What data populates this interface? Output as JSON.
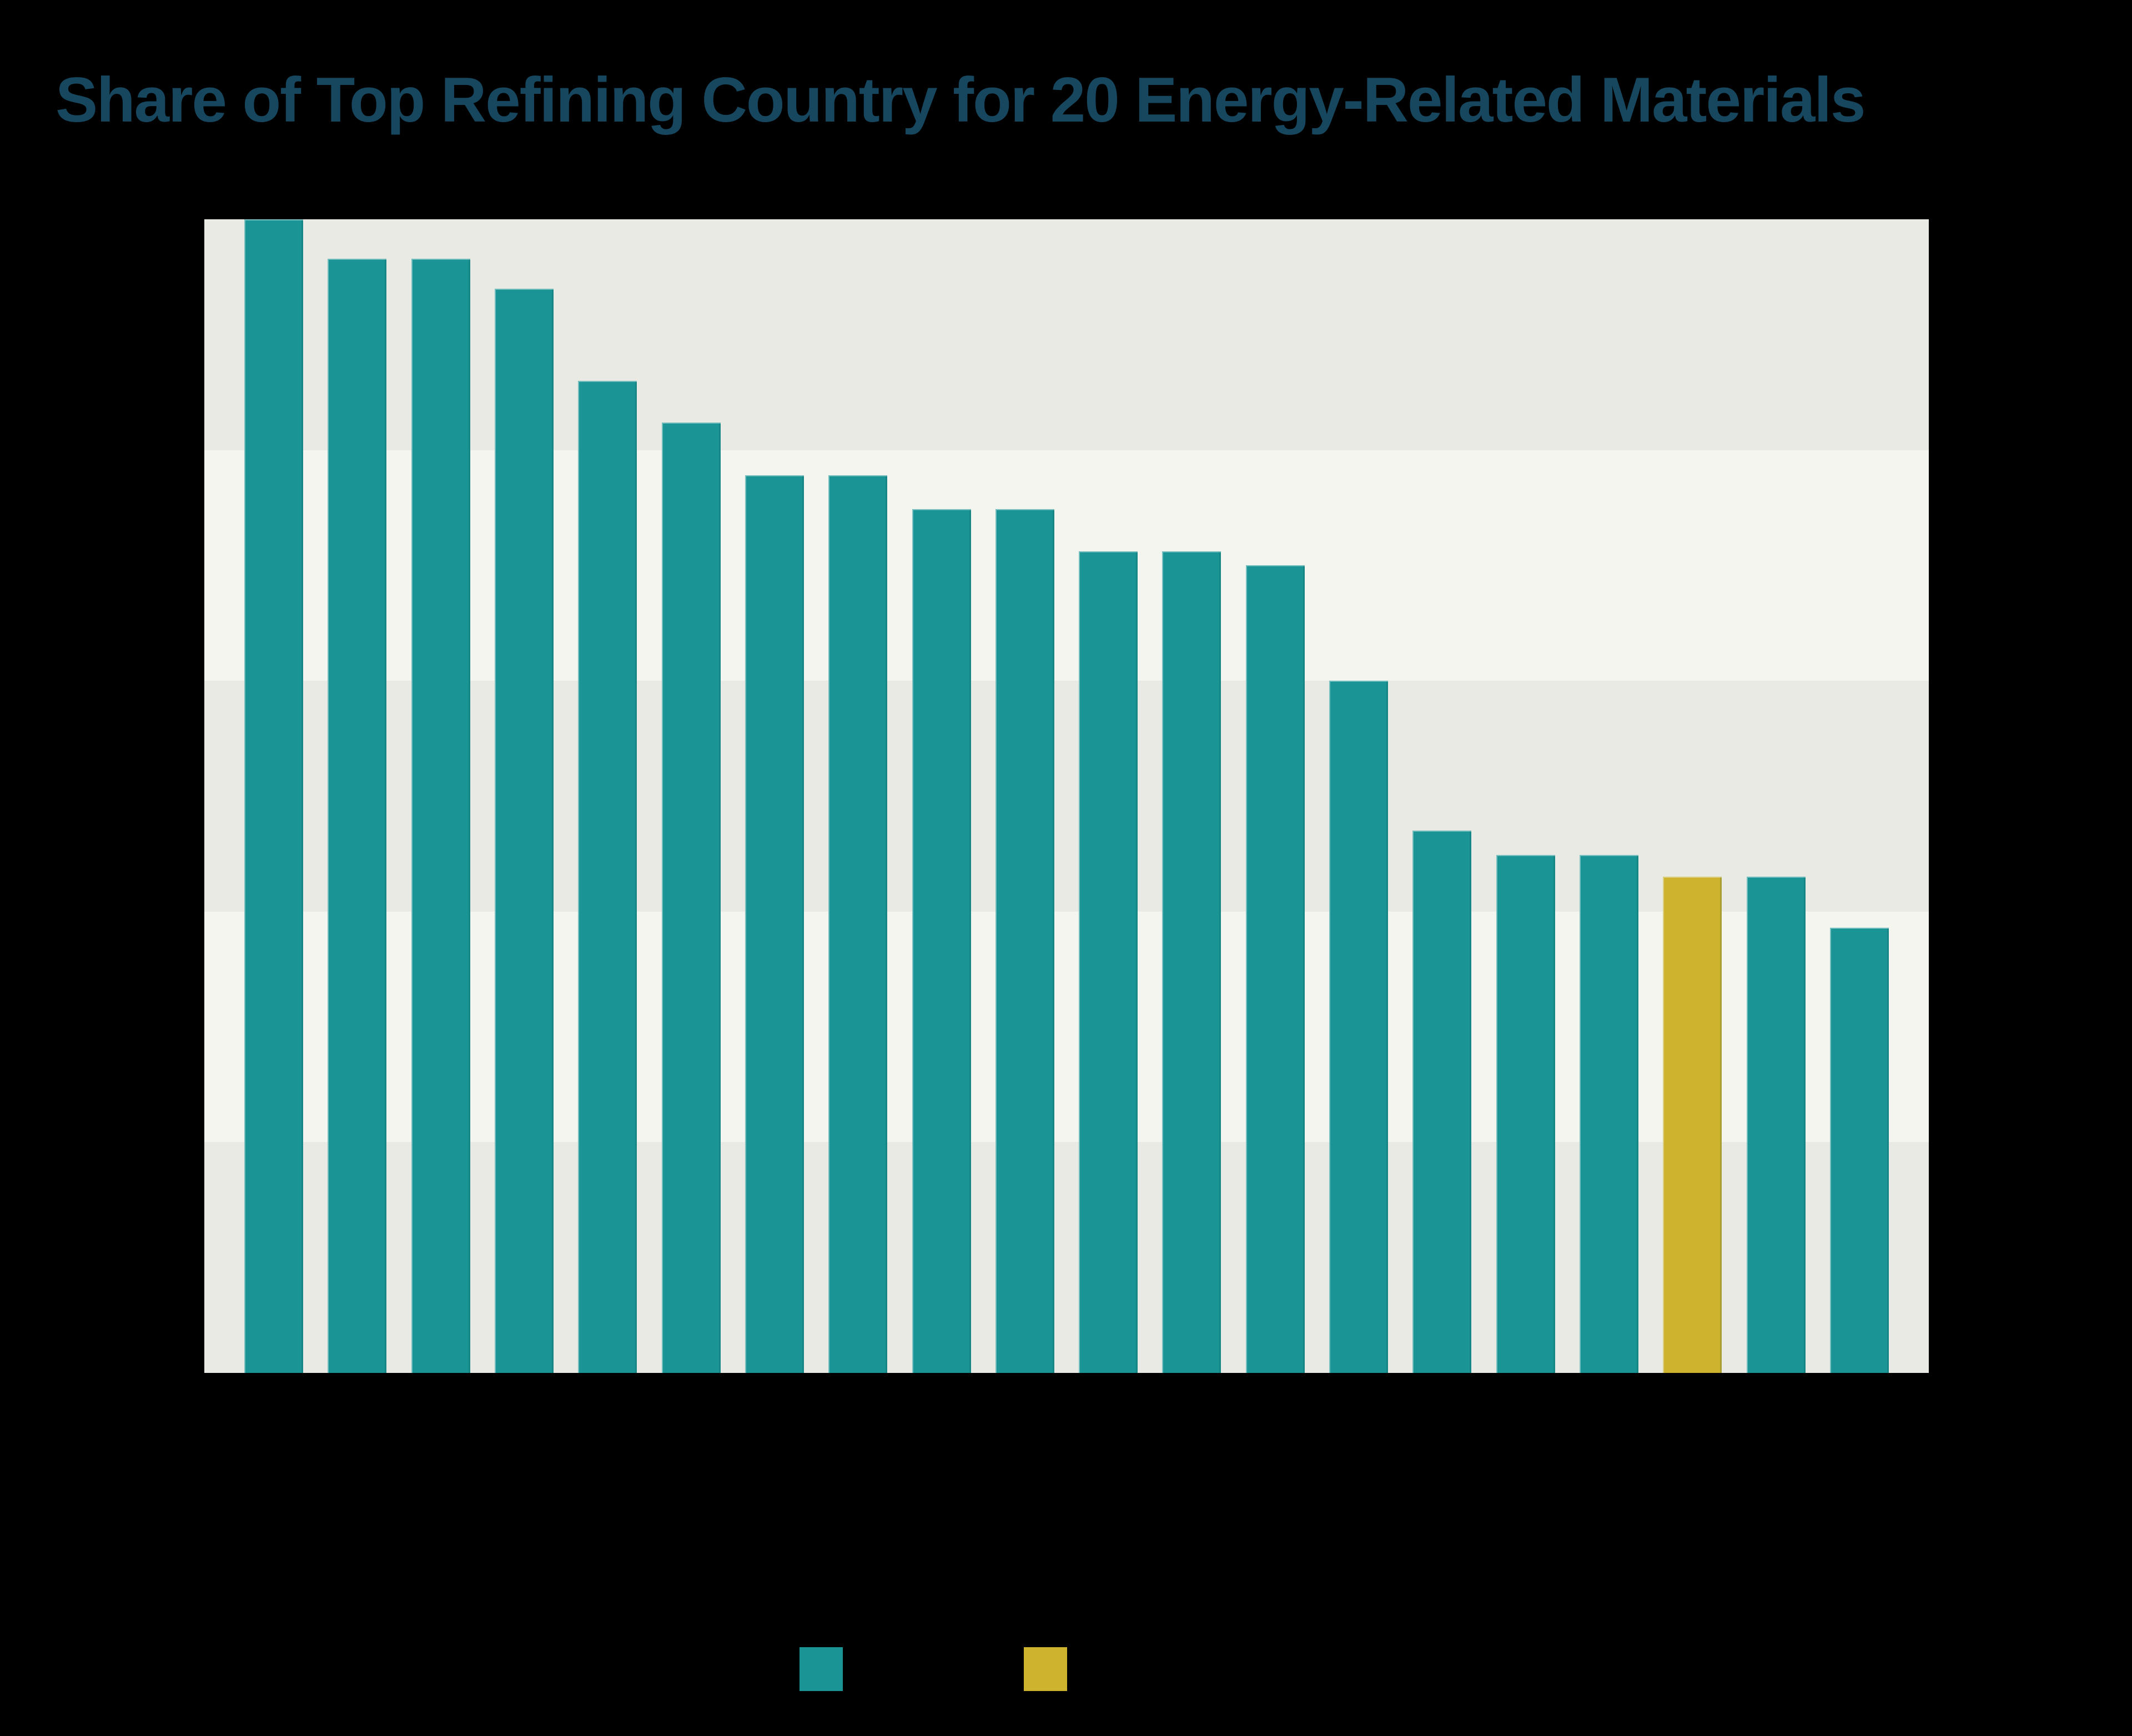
{
  "page": {
    "background_color": "#000000"
  },
  "header": {
    "title": "Share of Top Refining Country for 20 Energy-Related Materials",
    "title_color": "#16475f"
  },
  "chart_data": {
    "type": "bar",
    "title": "Share of Top Refining Country for 20 Energy-Related Materials",
    "n_bars": 20,
    "values": [
      100,
      96.6,
      96.6,
      94,
      86,
      82.4,
      77.8,
      77.8,
      74.9,
      74.9,
      71.2,
      71.2,
      70,
      60,
      47,
      44.9,
      44.9,
      43,
      43,
      38.6
    ],
    "highlight_index": 17,
    "bar_color": "#1b9495",
    "highlight_color": "#cdb32e",
    "xlabel": "",
    "ylabel": "",
    "ylim": [
      0,
      100
    ],
    "x_tick_labels_visible": false,
    "y_tick_labels_visible": false,
    "grid": "horizontal shaded bands every 20%",
    "band_colors_top_to_bottom": [
      "#e9eae4",
      "#f4f5ee",
      "#e9eae4",
      "#f4f5ee",
      "#e9eae4"
    ],
    "legend_position": "bottom"
  },
  "legend": {
    "items": [
      {
        "name": "primary-series",
        "color": "#1b9495",
        "label": ""
      },
      {
        "name": "highlight-series",
        "color": "#cdb32e",
        "label": ""
      }
    ]
  }
}
